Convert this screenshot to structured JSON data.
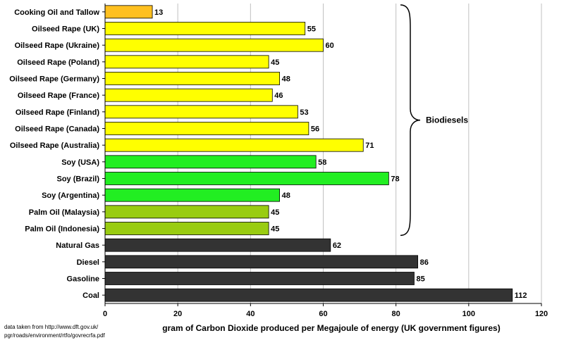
{
  "chart_data": {
    "type": "bar",
    "orientation": "horizontal",
    "categories": [
      "Cooking Oil and Tallow",
      "Oilseed Rape (UK)",
      "Oilseed Rape (Ukraine)",
      "Oilseed Rape (Poland)",
      "Oilseed Rape (Germany)",
      "Oilseed Rape (France)",
      "Oilseed Rape (Finland)",
      "Oilseed Rape (Canada)",
      "Oilseed Rape (Australia)",
      "Soy (USA)",
      "Soy (Brazil)",
      "Soy (Argentina)",
      "Palm Oil (Malaysia)",
      "Palm Oil (Indonesia)",
      "Natural Gas",
      "Diesel",
      "Gasoline",
      "Coal"
    ],
    "values": [
      13,
      55,
      60,
      45,
      48,
      46,
      53,
      56,
      71,
      58,
      78,
      48,
      45,
      45,
      62,
      86,
      85,
      112
    ],
    "value_labels": [
      "13",
      "55",
      "60",
      "45",
      "48",
      "46",
      "53",
      "56",
      "71",
      "58",
      "78",
      "48",
      "45",
      "45",
      "62",
      "86",
      "85",
      "112"
    ],
    "bar_colors": [
      "#ffc020",
      "#ffff00",
      "#ffff00",
      "#ffff00",
      "#ffff00",
      "#ffff00",
      "#ffff00",
      "#ffff00",
      "#ffff00",
      "#22ee22",
      "#22ee22",
      "#22ee22",
      "#99cc11",
      "#99cc11",
      "#333333",
      "#333333",
      "#333333",
      "#333333"
    ],
    "xlim": [
      0,
      120
    ],
    "xticks": [
      0,
      20,
      40,
      60,
      80,
      100,
      120
    ],
    "xtick_labels": [
      "0",
      "20",
      "40",
      "60",
      "80",
      "100",
      "120"
    ],
    "xlabel": "gram of Carbon Dioxide produced per Megajoule of energy (UK government figures)",
    "title": "",
    "grid": "vertical",
    "annotation": {
      "text": "Biodiesels",
      "bracket_from": "Cooking Oil and Tallow",
      "bracket_to": "Palm Oil (Indonesia)"
    },
    "source_note": [
      "data taken from http://www.dft.gov.uk/",
      "pgr/roads/environment/rtfo/govrecrfa.pdf"
    ]
  }
}
